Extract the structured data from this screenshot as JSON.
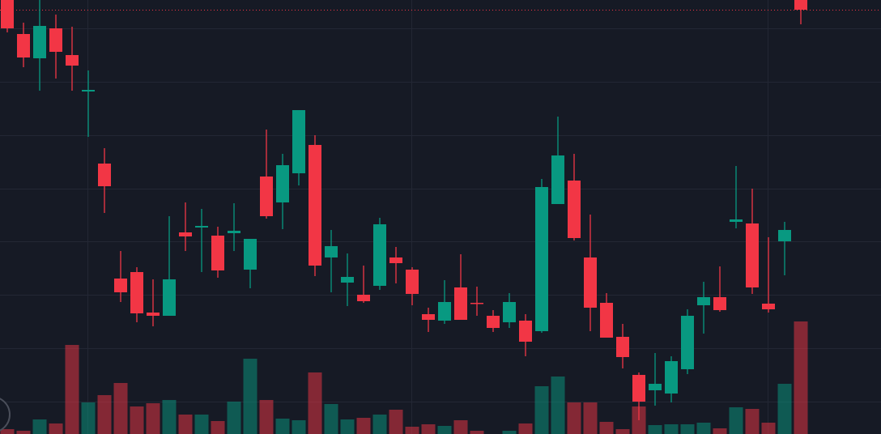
{
  "chart_data": {
    "type": "candlestick",
    "open": [
      536,
      494,
      464,
      501,
      468,
      423,
      334,
      192,
      200,
      150,
      146,
      249,
      255,
      245,
      248,
      203,
      318,
      286,
      322,
      357,
      218,
      187,
      172,
      183,
      218,
      203,
      148,
      140,
      181,
      162,
      146,
      138,
      140,
      127,
      284,
      313,
      218,
      162,
      120,
      73,
      54,
      50,
      80,
      159,
      169,
      262,
      260,
      161,
      238,
      536
    ],
    "high": [
      536,
      508,
      536,
      518,
      503,
      449,
      353,
      226,
      206,
      191,
      269,
      286,
      278,
      256,
      285,
      241,
      376,
      346,
      400,
      369,
      252,
      223,
      208,
      267,
      231,
      206,
      156,
      190,
      222,
      182,
      153,
      174,
      148,
      315,
      392,
      346,
      271,
      174,
      136,
      76,
      100,
      96,
      154,
      188,
      207,
      331,
      303,
      243,
      262,
      536
    ],
    "low": [
      496,
      453,
      424,
      439,
      424,
      367,
      273,
      163,
      138,
      133,
      146,
      226,
      200,
      193,
      226,
      180,
      266,
      253,
      307,
      195,
      175,
      158,
      162,
      178,
      186,
      159,
      126,
      136,
      141,
      146,
      126,
      131,
      96,
      125,
      284,
      239,
      127,
      119,
      81,
      17,
      35,
      39,
      74,
      124,
      151,
      254,
      173,
      150,
      196,
      506
    ],
    "close": [
      501,
      465,
      504,
      472,
      455,
      425,
      306,
      175,
      149,
      146,
      191,
      244,
      257,
      202,
      251,
      241,
      269,
      332,
      400,
      208,
      232,
      194,
      164,
      259,
      211,
      173,
      141,
      163,
      141,
      161,
      131,
      163,
      114,
      305,
      344,
      242,
      156,
      119,
      95,
      40,
      62,
      90,
      146,
      169,
      153,
      265,
      181,
      154,
      252,
      524
    ],
    "volume": [
      6,
      4,
      18,
      13,
      110,
      39,
      48,
      63,
      34,
      38,
      42,
      24,
      24,
      16,
      40,
      93,
      42,
      19,
      17,
      76,
      37,
      18,
      20,
      24,
      30,
      9,
      12,
      10,
      17,
      4,
      0,
      4,
      13,
      59,
      71,
      39,
      39,
      15,
      6,
      34,
      11,
      12,
      12,
      14,
      7,
      33,
      31,
      14,
      62,
      139
    ],
    "up_color": "#089981",
    "down_color": "#f23645",
    "ylim": [
      0,
      536
    ],
    "y2lim": [
      0,
      536
    ],
    "yticks": [
      501,
      435,
      369,
      303,
      238,
      172,
      106,
      40
    ],
    "grid": true,
    "price_line": true
  }
}
